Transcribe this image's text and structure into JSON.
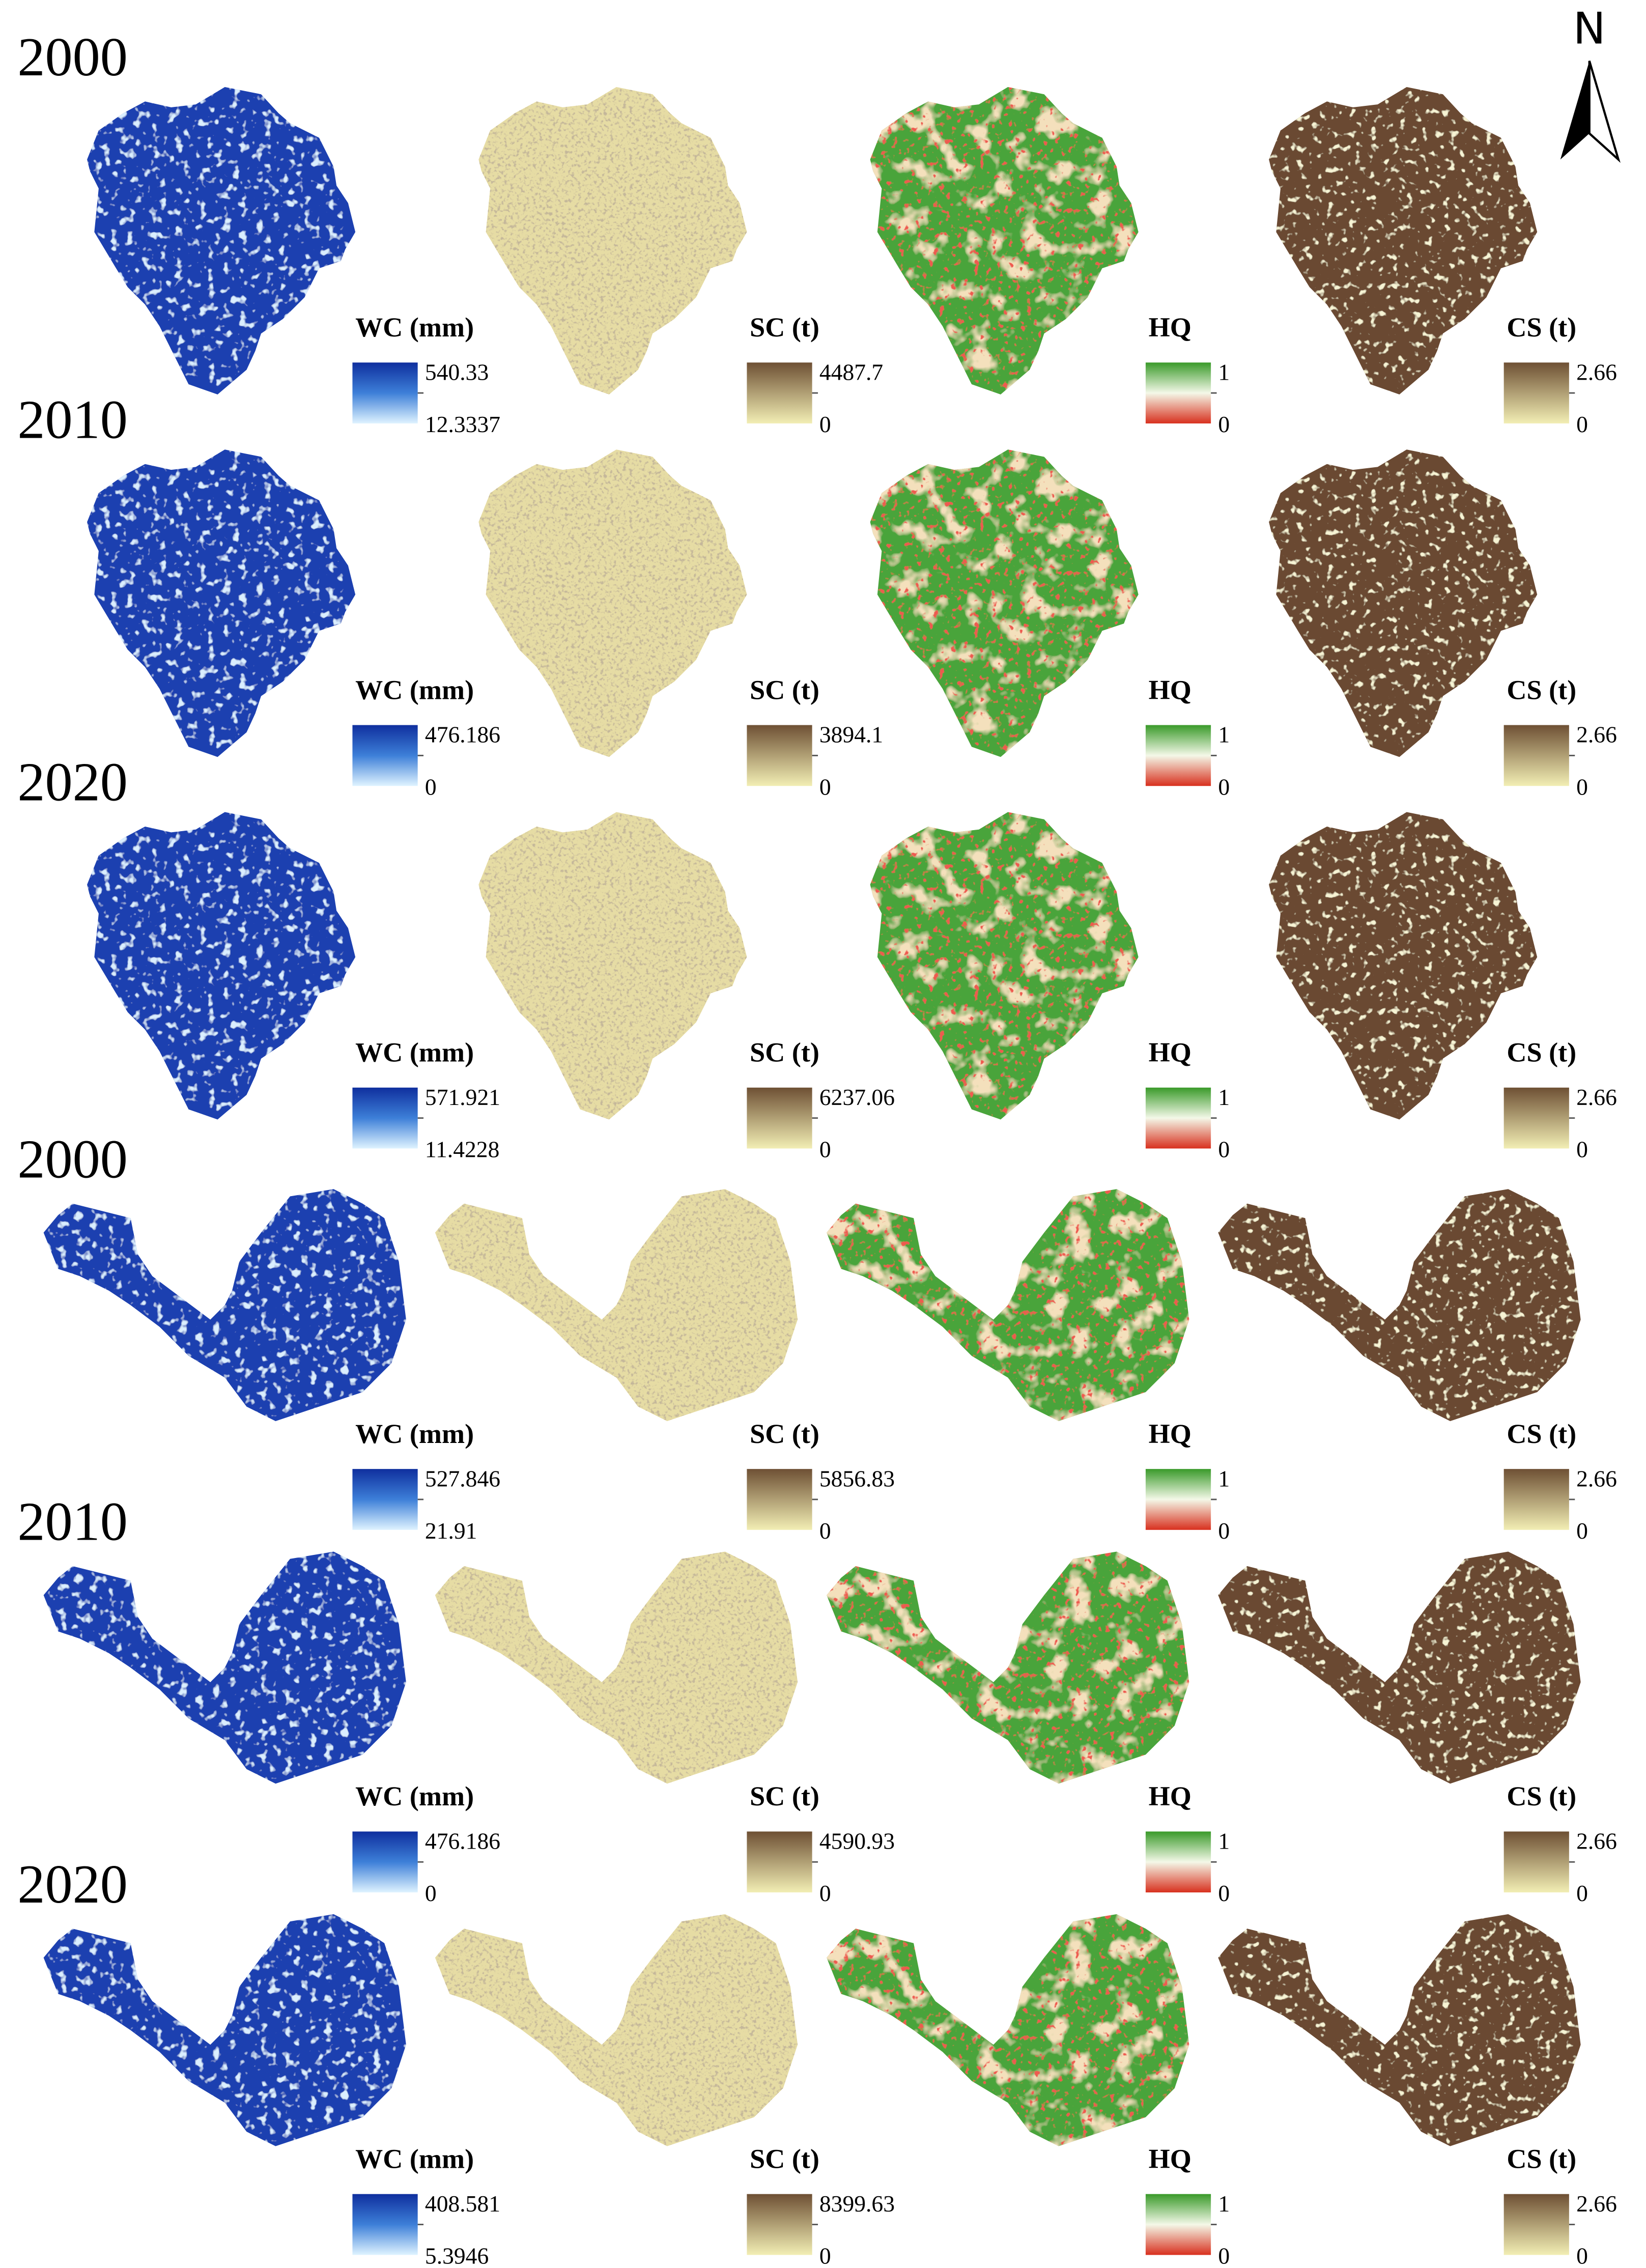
{
  "north": "N",
  "rows": [
    {
      "year": "2000",
      "panels": [
        {
          "title": "WC (mm)",
          "max": "540.33",
          "min": "12.3337"
        },
        {
          "title": "SC (t)",
          "max": "4487.7",
          "min": "0"
        },
        {
          "title": "HQ",
          "max": "1",
          "min": "0"
        },
        {
          "title": "CS (t)",
          "max": "2.66",
          "min": "0"
        }
      ]
    },
    {
      "year": "2010",
      "panels": [
        {
          "title": "WC (mm)",
          "max": "476.186",
          "min": "0"
        },
        {
          "title": "SC (t)",
          "max": "3894.1",
          "min": "0"
        },
        {
          "title": "HQ",
          "max": "1",
          "min": "0"
        },
        {
          "title": "CS (t)",
          "max": "2.66",
          "min": "0"
        }
      ]
    },
    {
      "year": "2020",
      "panels": [
        {
          "title": "WC (mm)",
          "max": "571.921",
          "min": "11.4228"
        },
        {
          "title": "SC (t)",
          "max": "6237.06",
          "min": "0"
        },
        {
          "title": "HQ",
          "max": "1",
          "min": "0"
        },
        {
          "title": "CS (t)",
          "max": "2.66",
          "min": "0"
        }
      ]
    },
    {
      "year": "2000",
      "panels": [
        {
          "title": "WC (mm)",
          "max": "527.846",
          "min": "21.91"
        },
        {
          "title": "SC (t)",
          "max": "5856.83",
          "min": "0"
        },
        {
          "title": "HQ",
          "max": "1",
          "min": "0"
        },
        {
          "title": "CS (t)",
          "max": "2.66",
          "min": "0"
        }
      ]
    },
    {
      "year": "2010",
      "panels": [
        {
          "title": "WC (mm)",
          "max": "476.186",
          "min": "0"
        },
        {
          "title": "SC (t)",
          "max": "4590.93",
          "min": "0"
        },
        {
          "title": "HQ",
          "max": "1",
          "min": "0"
        },
        {
          "title": "CS (t)",
          "max": "2.66",
          "min": "0"
        }
      ]
    },
    {
      "year": "2020",
      "panels": [
        {
          "title": "WC (mm)",
          "max": "408.581",
          "min": "5.3946"
        },
        {
          "title": "SC (t)",
          "max": "8399.63",
          "min": "0"
        },
        {
          "title": "HQ",
          "max": "1",
          "min": "0"
        },
        {
          "title": "CS (t)",
          "max": "2.66",
          "min": "0"
        }
      ]
    }
  ]
}
